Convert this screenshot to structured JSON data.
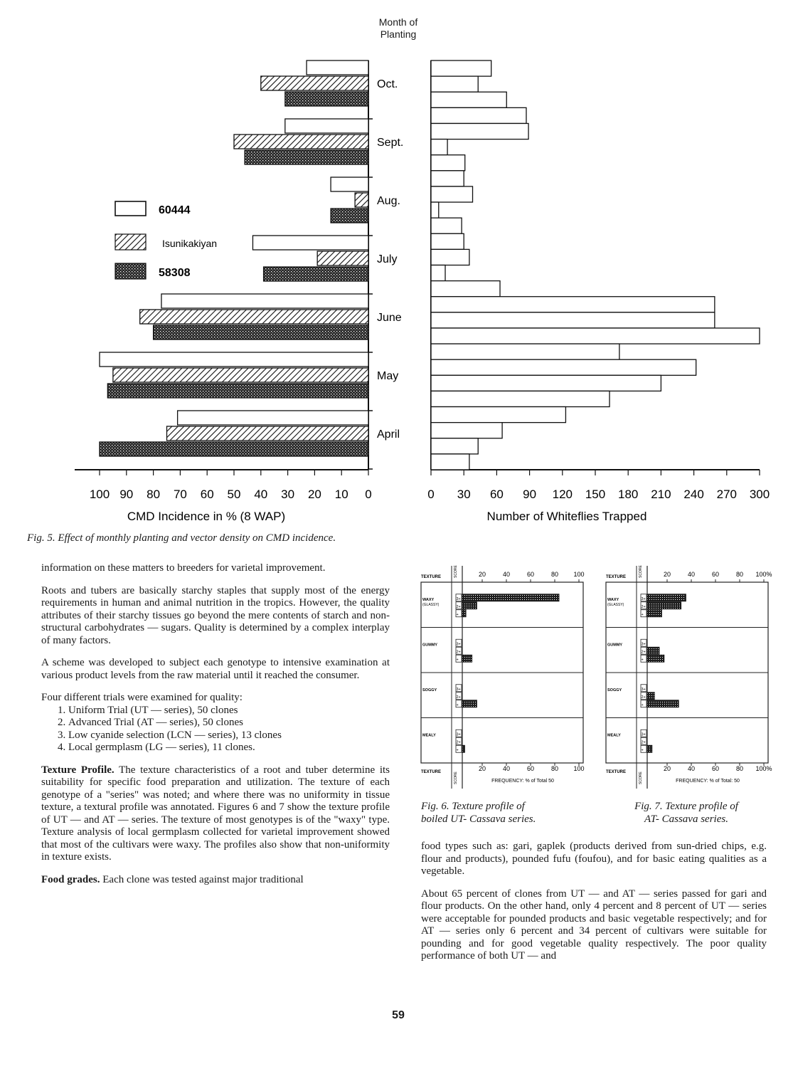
{
  "fig5": {
    "month_header_1": "Month of",
    "month_header_2": "Planting",
    "caption": "Fig. 5. Effect of monthly planting and vector density on CMD incidence."
  },
  "fig6": {
    "caption_l1": "Fig. 6. Texture profile of",
    "caption_l2": "boiled UT- Cassava series."
  },
  "fig7": {
    "caption_l1": "Fig. 7. Texture profile of",
    "caption_l2": "AT- Cassava series."
  },
  "chart_data": [
    {
      "type": "bar",
      "title": "",
      "xlabel": "CMD Incidence in % (8 WAP)",
      "ylabel": "Month of Planting",
      "xlim": [
        0,
        100
      ],
      "x_ticks": [
        "100",
        "90",
        "80",
        "70",
        "60",
        "50",
        "40",
        "30",
        "20",
        "10",
        "0"
      ],
      "categories": [
        "Oct.",
        "Sept.",
        "Aug.",
        "July",
        "June",
        "May",
        "April"
      ],
      "series": [
        {
          "name": "60444",
          "pattern": "open",
          "values": [
            23,
            31,
            14,
            43,
            77,
            100,
            71
          ]
        },
        {
          "name": "Isunikakiyan",
          "pattern": "hatched",
          "values": [
            40,
            50,
            5,
            19,
            85,
            95,
            75
          ]
        },
        {
          "name": "58308",
          "pattern": "stippled",
          "values": [
            31,
            46,
            14,
            39,
            80,
            97,
            100
          ]
        }
      ]
    },
    {
      "type": "bar",
      "title": "",
      "xlabel": "Number of Whiteflies Trapped",
      "xlim": [
        0,
        300
      ],
      "x_ticks": [
        "0",
        "30",
        "60",
        "90",
        "120",
        "150",
        "180",
        "210",
        "240",
        "270",
        "300"
      ],
      "values": [
        55,
        43,
        69,
        87,
        89,
        15,
        31,
        30,
        38,
        7,
        28,
        30,
        35,
        13,
        63,
        259,
        259,
        300,
        172,
        242,
        210,
        163,
        123,
        65,
        43,
        35
      ],
      "note": "one bar per weekly trap reading, from Oct. (top) to April (bottom)"
    },
    {
      "type": "bar",
      "title": "",
      "xlabel": "FREQUENCY: % of Total 50",
      "x_ticks": [
        "20",
        "40",
        "60",
        "80",
        "100"
      ],
      "groups": [
        {
          "texture": "WAXY (GLASSY)",
          "scores": [
            "3+",
            "2+",
            "+"
          ],
          "values": [
            80,
            12,
            3
          ]
        },
        {
          "texture": "GUMMY",
          "scores": [
            "3+",
            "2+",
            "+"
          ],
          "values": [
            0,
            0,
            8
          ]
        },
        {
          "texture": "SOGGY",
          "scores": [
            "3+",
            "2+",
            "+"
          ],
          "values": [
            0,
            0,
            12
          ]
        },
        {
          "texture": "MEALY",
          "scores": [
            "3+",
            "2+",
            "+"
          ],
          "values": [
            0,
            0,
            2
          ]
        }
      ],
      "axis_labels": {
        "column_1": "TEXTURE",
        "column_2": "SCORE"
      }
    },
    {
      "type": "bar",
      "title": "",
      "xlabel": "FREQUENCY: % of Total: 50",
      "x_ticks": [
        "20",
        "40",
        "60",
        "80",
        "100%"
      ],
      "groups": [
        {
          "texture": "WAXY (GLASSY)",
          "scores": [
            "3+",
            "2+",
            "+"
          ],
          "values": [
            32,
            28,
            12
          ]
        },
        {
          "texture": "GUMMY",
          "scores": [
            "3+",
            "2+",
            "+"
          ],
          "values": [
            0,
            10,
            14
          ]
        },
        {
          "texture": "SOGGY",
          "scores": [
            "3+",
            "2+",
            "+"
          ],
          "values": [
            0,
            6,
            26
          ]
        },
        {
          "texture": "MEALY",
          "scores": [
            "3+",
            "2+",
            "+"
          ],
          "values": [
            0,
            0,
            4
          ]
        }
      ],
      "axis_labels": {
        "column_1": "TEXTURE",
        "column_2": "SCORE"
      }
    }
  ],
  "left_column": {
    "p1": "information on these matters to breeders for varietal improvement.",
    "p2": "Roots and tubers are basically starchy staples that supply most of the energy requirements in human and animal nutrition in the tropics. However, the quality attributes of their starchy tissues go beyond the mere contents of starch and non-structural carbohydrates — sugars. Quality is determined by a complex interplay of many factors.",
    "p3": "A scheme was developed to subject each genotype to intensive examination at various product levels from the raw material until it reached the consumer.",
    "p4": "Four different trials were examined for quality:",
    "trials": [
      "Uniform Trial (UT — series), 50 clones",
      "Advanced Trial (AT — series), 50 clones",
      "Low cyanide selection (LCN — series), 13 clones",
      "Local germplasm (LG — series), 11 clones."
    ],
    "texture_head": "Texture Profile.",
    "texture_body": "The texture characteristics of a root and tuber determine its suitability for specific food preparation and utilization. The texture of each genotype of a \"series\" was noted; and where there was no uniformity in tissue texture, a textural profile was annotated. Figures 6 and 7 show the texture profile of UT — and AT — series. The texture of most genotypes is of the \"waxy\" type. Texture analysis of local germplasm collected for varietal improvement showed that most of the cultivars were waxy. The profiles also show that non-uniformity in texture exists.",
    "food_head": "Food grades.",
    "food_body": "Each clone was tested against major traditional"
  },
  "right_column": {
    "p1": "food types such as: gari, gaplek (products derived from sun-dried chips, e.g. flour and products), pounded fufu (foufou), and for basic eating qualities as a vegetable.",
    "p2": "About 65 percent of clones from UT — and AT — series passed for gari and flour products. On the other hand, only 4 percent and 8 percent of UT — series were acceptable for pounded products and basic vegetable respectively; and for AT — series only 6 percent and 34 percent of cultivars were suitable for pounding and for good vegetable quality respectively. The poor quality performance of both UT — and"
  },
  "page_number": "59"
}
